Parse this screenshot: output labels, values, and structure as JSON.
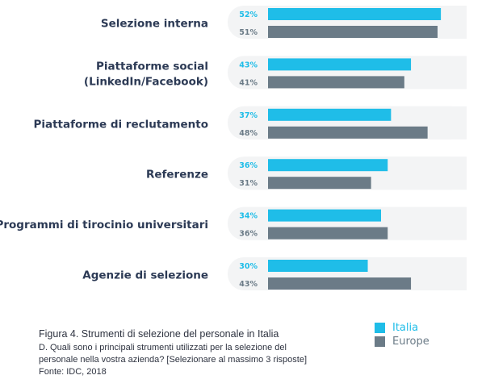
{
  "chart_data": {
    "type": "bar",
    "orientation": "horizontal",
    "categories": [
      "Selezione interna",
      "Piattaforme social (LinkedIn/Facebook)",
      "Piattaforme di reclutamento",
      "Referenze",
      "Programmi di tirocinio universitari",
      "Agenzie di selezione"
    ],
    "category_lines": [
      [
        "Selezione interna"
      ],
      [
        "Piattaforme social",
        "(LinkedIn/Facebook)"
      ],
      [
        "Piattaforme di reclutamento"
      ],
      [
        "Referenze"
      ],
      [
        "Programmi di tirocinio universitari"
      ],
      [
        "Agenzie di selezione"
      ]
    ],
    "series": [
      {
        "name": "Italia",
        "color": "#1fbde8",
        "values": [
          52,
          43,
          37,
          36,
          34,
          30
        ],
        "labels": [
          "52%",
          "43%",
          "37%",
          "36%",
          "34%",
          "30%"
        ]
      },
      {
        "name": "Europe",
        "color": "#6b7b87",
        "values": [
          51,
          41,
          48,
          31,
          36,
          43
        ],
        "labels": [
          "51%",
          "41%",
          "48%",
          "31%",
          "36%",
          "43%"
        ]
      }
    ],
    "xlim": [
      0,
      60
    ],
    "unit": "%"
  },
  "caption": {
    "title": "Figura 4. Strumenti di selezione del personale in Italia",
    "question_line1": "D. Quali sono i principali strumenti utilizzati per la selezione del",
    "question_line2": "personale nella vostra azienda? [Selezionare al massimo 3 risposte]",
    "source": "Fonte: IDC, 2018"
  },
  "legend": [
    {
      "label": "Italia",
      "color": "#1fbde8"
    },
    {
      "label": "Europe",
      "color": "#6b7b87"
    }
  ]
}
